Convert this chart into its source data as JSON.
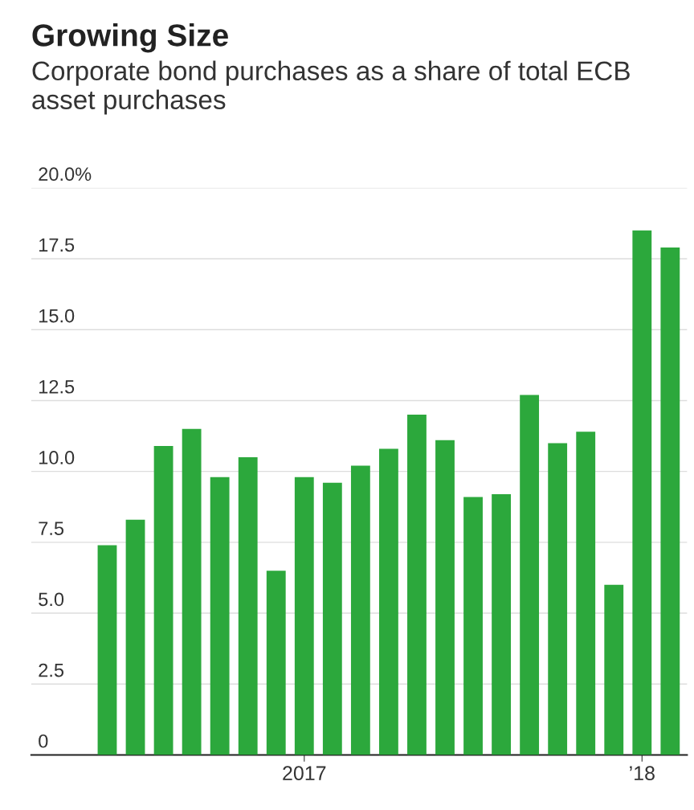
{
  "chart_data": {
    "type": "bar",
    "title": "Growing Size",
    "subtitle": "Corporate bond purchases as a share of total ECB asset purchases",
    "categories": [
      null,
      null,
      null,
      null,
      null,
      null,
      null,
      "2017",
      null,
      null,
      null,
      null,
      null,
      null,
      null,
      null,
      null,
      null,
      null,
      "’18",
      null
    ],
    "values": [
      7.4,
      8.3,
      10.9,
      11.5,
      9.8,
      10.5,
      6.5,
      9.8,
      9.6,
      10.2,
      10.8,
      12.0,
      11.1,
      9.1,
      9.2,
      12.7,
      11.0,
      11.4,
      6.0,
      18.5,
      17.9
    ],
    "color": "#2ca83c",
    "ylim": [
      0,
      20
    ],
    "yticks": [
      {
        "value": 0,
        "label": "0"
      },
      {
        "value": 2.5,
        "label": "2.5"
      },
      {
        "value": 5,
        "label": "5.0"
      },
      {
        "value": 7.5,
        "label": "7.5"
      },
      {
        "value": 10,
        "label": "10.0"
      },
      {
        "value": 12.5,
        "label": "12.5"
      },
      {
        "value": 15,
        "label": "15.0"
      },
      {
        "value": 17.5,
        "label": "17.5"
      },
      {
        "value": 20,
        "label": "20.0%"
      }
    ],
    "grid": "y"
  }
}
